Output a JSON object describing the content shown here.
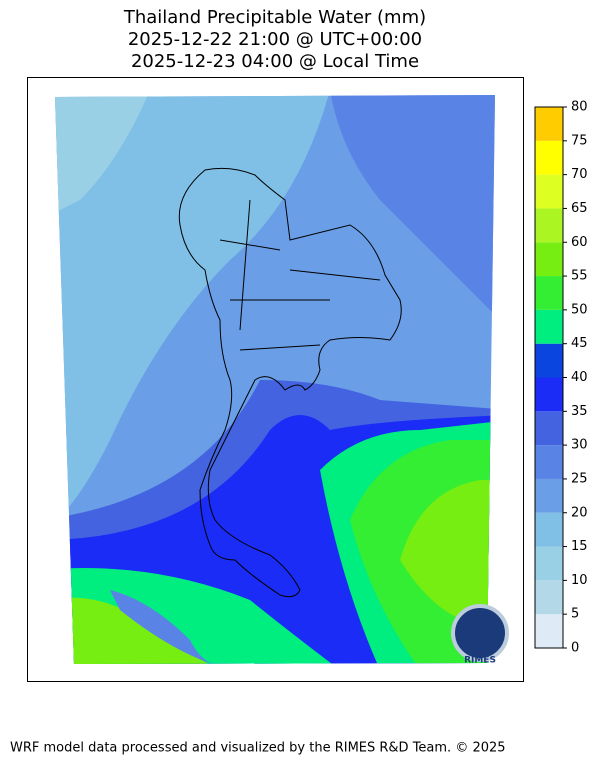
{
  "title": [
    "Thailand Precipitable Water (mm)",
    "2025-12-22 21:00 @ UTC+00:00",
    "2025-12-23 04:00 @ Local Time"
  ],
  "colorbar": {
    "levels": [
      0,
      5,
      10,
      15,
      20,
      25,
      30,
      35,
      40,
      45,
      50,
      55,
      60,
      65,
      70,
      75,
      80
    ],
    "colors": [
      "#deebf7",
      "#b3d9e8",
      "#99d0e6",
      "#80c0e6",
      "#6a9ee6",
      "#5a83e6",
      "#4363e0",
      "#1a2cf5",
      "#0a45e0",
      "#00ee80",
      "#33ee33",
      "#77ee11",
      "#aaf522",
      "#ddff22",
      "#ffff00",
      "#ffcc00"
    ]
  },
  "logo_text": "RIMES",
  "footer": "WRF model data processed and visualized by the RIMES R&D Team. © 2025"
}
